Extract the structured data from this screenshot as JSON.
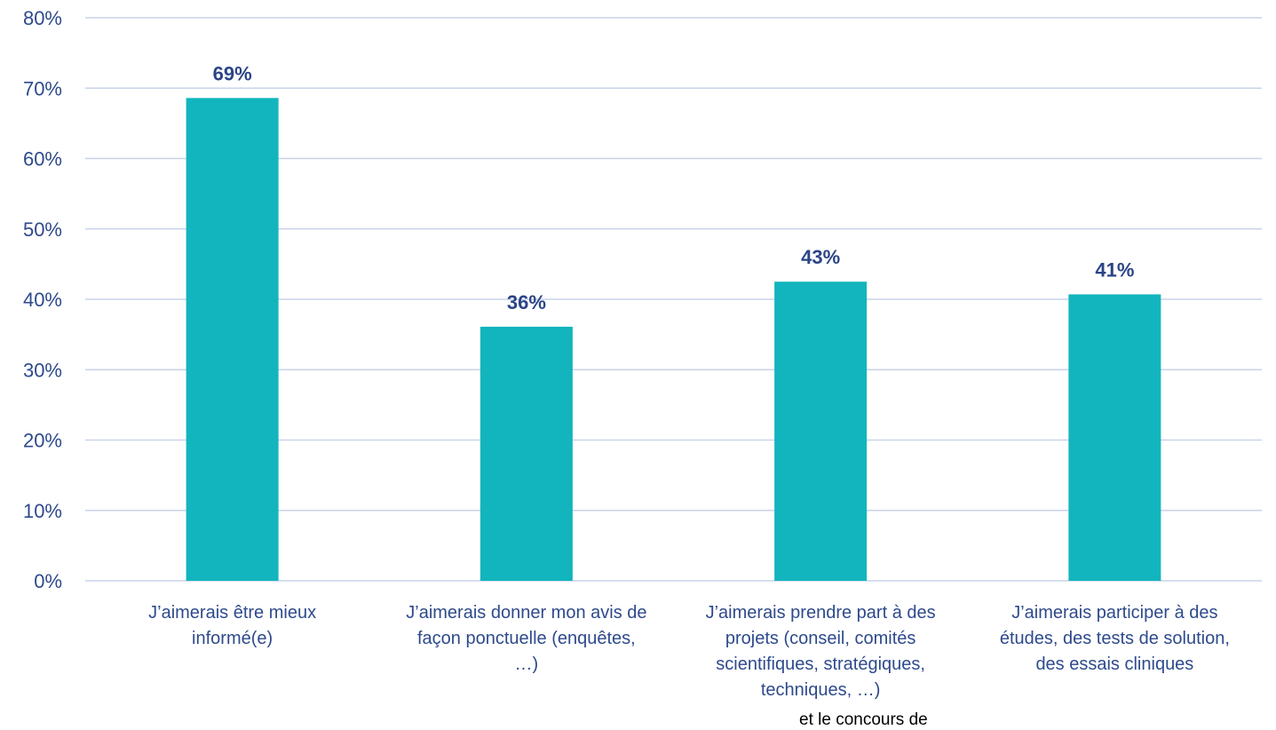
{
  "chart_data": {
    "type": "bar",
    "categories": [
      [
        "J’aimerais être mieux",
        "informé(e)"
      ],
      [
        "J’aimerais donner mon avis de",
        "façon ponctuelle (enquêtes,",
        "…)"
      ],
      [
        "J’aimerais prendre part à des",
        "projets (conseil, comités",
        "scientifiques, stratégiques,",
        "techniques, …)"
      ],
      [
        "J’aimerais participer à des",
        "études, des tests de solution,",
        "des essais cliniques"
      ]
    ],
    "values": [
      68.6,
      36.1,
      42.5,
      40.7
    ],
    "data_labels": [
      "69%",
      "36%",
      "43%",
      "41%"
    ],
    "ylim": [
      0,
      80
    ],
    "yticks": [
      "0%",
      "10%",
      "20%",
      "30%",
      "40%",
      "50%",
      "60%",
      "70%",
      "80%"
    ],
    "grid": true,
    "colors": {
      "bar": "#12b5bd",
      "grid": "#c9d3ea",
      "tick_text": "#2e4a8c",
      "label_text": "#2b4486"
    }
  },
  "footer_fragment": "et le concours de"
}
